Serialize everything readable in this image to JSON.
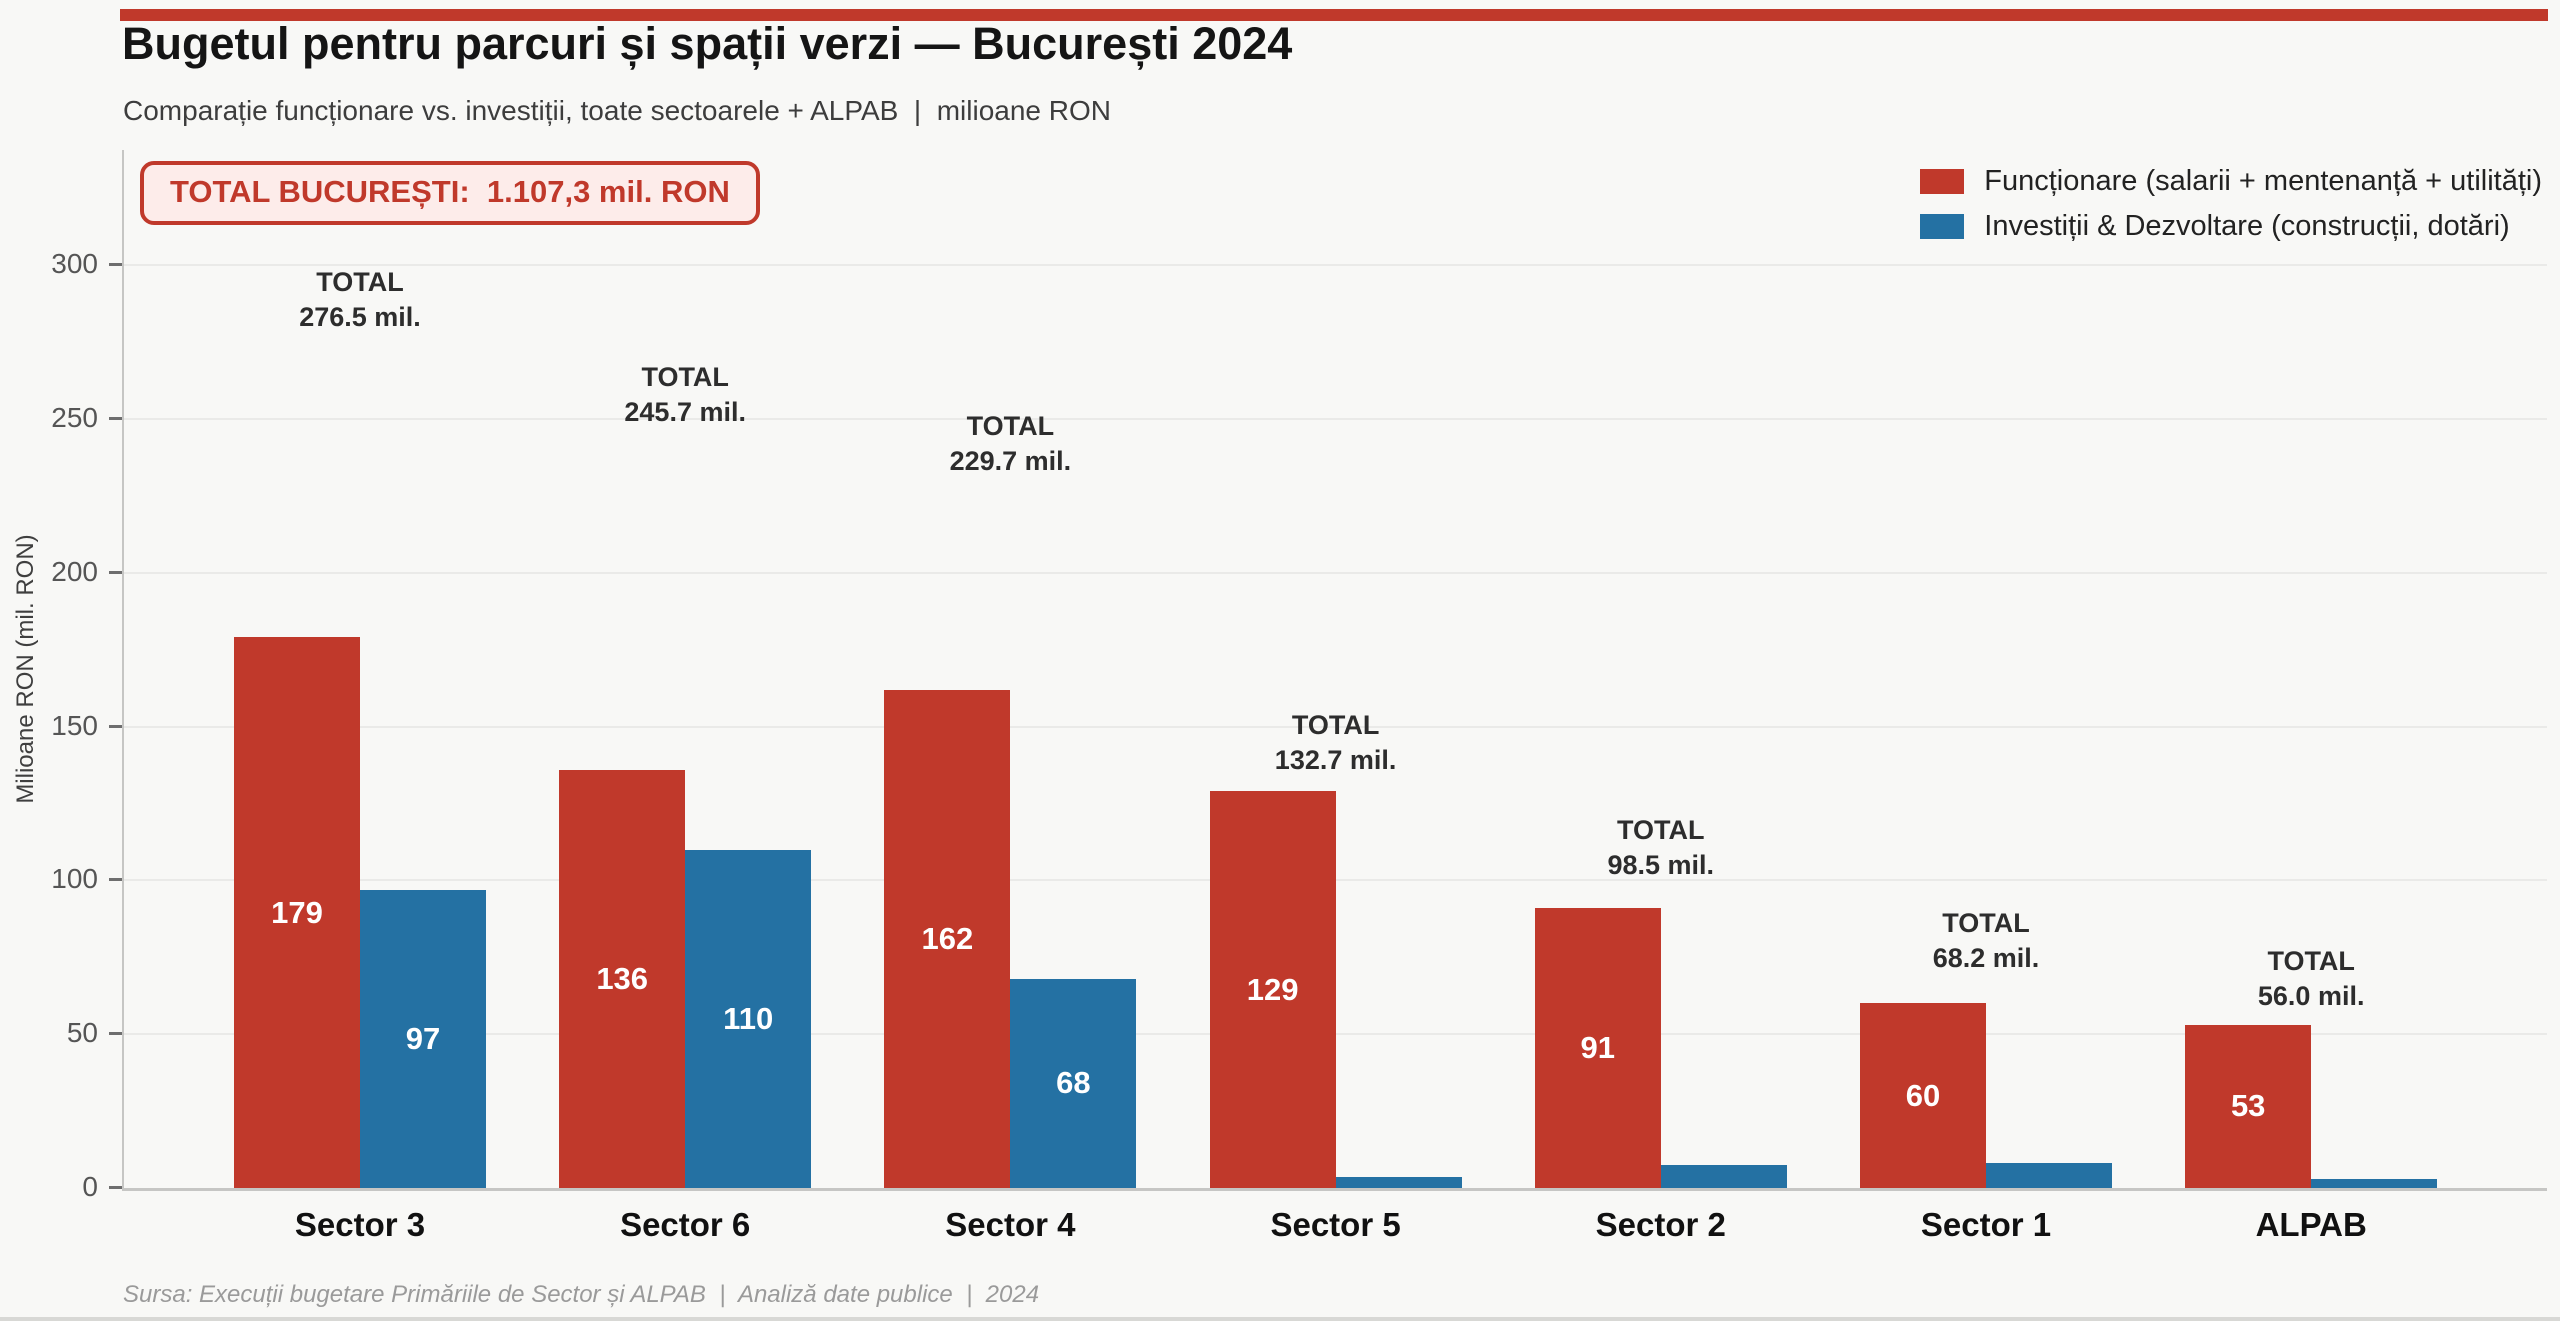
{
  "page": {
    "background": "#f8f8f6",
    "accent_color": "#c0392b",
    "axis_color": "#c6c6c4",
    "gridline_color": "#eaeae8"
  },
  "header": {
    "title": "Bugetul pentru parcuri și spații verzi — București 2024",
    "subtitle": "Comparație funcționare vs. investiții, toate sectoarele + ALPAB  |  milioane RON"
  },
  "total_badge": {
    "text": "TOTAL BUCUREȘTI:  1.107,3 mil. RON",
    "color": "#c0392b",
    "background": "#fdecea"
  },
  "chart_data": {
    "type": "bar",
    "title": "Bugetul pentru parcuri și spații verzi — București 2024",
    "categories": [
      "Sector 3",
      "Sector 6",
      "Sector 4",
      "Sector 5",
      "Sector 2",
      "Sector 1",
      "ALPAB"
    ],
    "series": [
      {
        "name": "Funcționare (salarii + mentenanță + utilități)",
        "color": "#c0392b",
        "values": [
          179,
          136,
          162,
          129,
          91,
          60,
          53
        ],
        "bar_labels": [
          "179",
          "136",
          "162",
          "129",
          "91",
          "60",
          "53"
        ]
      },
      {
        "name": "Investiții & Dezvoltare (construcții, dotări)",
        "color": "#2471a3",
        "values": [
          97,
          110,
          68,
          3.7,
          7.5,
          8.2,
          3.0
        ],
        "bar_labels": [
          "97",
          "110",
          "68",
          "",
          "",
          "",
          ""
        ]
      }
    ],
    "totals": {
      "label": "TOTAL",
      "values": [
        276.5,
        245.7,
        229.7,
        132.7,
        98.5,
        68.2,
        56.0
      ],
      "value_labels": [
        "276.5 mil.",
        "245.7 mil.",
        "229.7 mil.",
        "132.7 mil.",
        "98.5 mil.",
        "68.2 mil.",
        "56.0 mil."
      ]
    },
    "xlabel": "",
    "ylabel": "Milioane RON (mil. RON)",
    "yticks": [
      0,
      50,
      100,
      150,
      200,
      250,
      300
    ],
    "ylim": [
      0,
      337
    ],
    "grid": true,
    "legend_position": "top-right"
  },
  "footer": {
    "source": "Sursa: Execuții bugetare Primăriile de Sector și ALPAB  |  Analiză date publice  |  2024"
  }
}
